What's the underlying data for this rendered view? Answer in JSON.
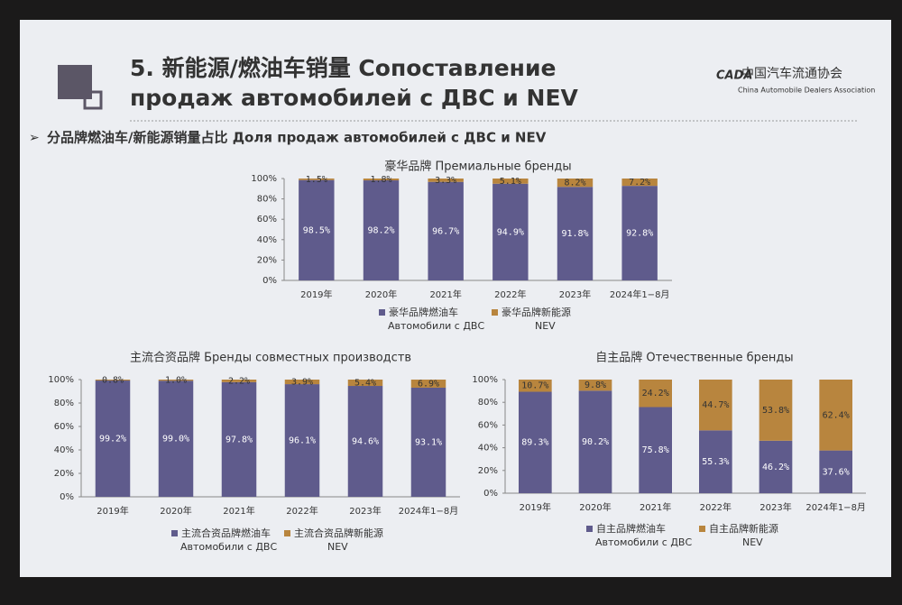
{
  "slide": {
    "title_lines": [
      "5. 新能源/燃油车销量 Сопоставление",
      "продаж автомобилей с ДВС и NEV"
    ],
    "subtitle": "分品牌燃油车/新能源销量占比 Доля продаж автомобилей с ДВС и NEV",
    "logo_mark": "CADA",
    "logo_cn": "中国汽车流通协会",
    "logo_en": "China Automobile Dealers Association"
  },
  "chart_data": [
    {
      "type": "stacked_bar",
      "title": "豪华品牌 Премиальные бренды",
      "categories": [
        "2019年",
        "2020年",
        "2021年",
        "2022年",
        "2023年",
        "2024年1−8月"
      ],
      "series": [
        {
          "name": "豪华品牌燃油车",
          "name_ru": "Автомобили с ДВС",
          "color": "#5f5b8c",
          "values": [
            98.5,
            98.2,
            96.7,
            94.9,
            91.8,
            92.8
          ],
          "value_labels": [
            "98.5%",
            "98.2%",
            "96.7%",
            "94.9%",
            "91.8%",
            "92.8%"
          ]
        },
        {
          "name": "豪华品牌新能源",
          "name_ru": "NEV",
          "color": "#b8853e",
          "values": [
            1.5,
            1.8,
            3.3,
            5.1,
            8.2,
            7.2
          ],
          "value_labels": [
            "1.5%",
            "1.8%",
            "3.3%",
            "5.1%",
            "8.2%",
            "7.2%"
          ]
        }
      ],
      "ylim": [
        0,
        100
      ],
      "yticks": [
        {
          "value": 0,
          "label": "0%"
        },
        {
          "value": 20,
          "label": "20%"
        },
        {
          "value": 40,
          "label": "40%"
        },
        {
          "value": 60,
          "label": "60%"
        },
        {
          "value": 80,
          "label": "80%"
        },
        {
          "value": 100,
          "label": "100%"
        }
      ]
    },
    {
      "type": "stacked_bar",
      "title": "主流合资品牌 Бренды совместных производств",
      "categories": [
        "2019年",
        "2020年",
        "2021年",
        "2022年",
        "2023年",
        "2024年1−8月"
      ],
      "series": [
        {
          "name": "主流合资品牌燃油车",
          "name_ru": "Автомобили с ДВС",
          "color": "#5f5b8c",
          "values": [
            99.2,
            99.0,
            97.8,
            96.1,
            94.6,
            93.1
          ],
          "value_labels": [
            "99.2%",
            "99.0%",
            "97.8%",
            "96.1%",
            "94.6%",
            "93.1%"
          ]
        },
        {
          "name": "主流合资品牌新能源",
          "name_ru": "NEV",
          "color": "#b8853e",
          "values": [
            0.8,
            1.0,
            2.2,
            3.9,
            5.4,
            6.9
          ],
          "value_labels": [
            "0.8%",
            "1.0%",
            "2.2%",
            "3.9%",
            "5.4%",
            "6.9%"
          ]
        }
      ],
      "ylim": [
        0,
        100
      ],
      "yticks": [
        {
          "value": 0,
          "label": "0%"
        },
        {
          "value": 20,
          "label": "20%"
        },
        {
          "value": 40,
          "label": "40%"
        },
        {
          "value": 60,
          "label": "60%"
        },
        {
          "value": 80,
          "label": "80%"
        },
        {
          "value": 100,
          "label": "100%"
        }
      ]
    },
    {
      "type": "stacked_bar",
      "title": "自主品牌 Отечественные бренды",
      "categories": [
        "2019年",
        "2020年",
        "2021年",
        "2022年",
        "2023年",
        "2024年1−8月"
      ],
      "series": [
        {
          "name": "自主品牌燃油车",
          "name_ru": "Автомобили с ДВС",
          "color": "#5f5b8c",
          "values": [
            89.3,
            90.2,
            75.8,
            55.3,
            46.2,
            37.6
          ],
          "value_labels": [
            "89.3%",
            "90.2%",
            "75.8%",
            "55.3%",
            "46.2%",
            "37.6%"
          ]
        },
        {
          "name": "自主品牌新能源",
          "name_ru": "NEV",
          "color": "#b8853e",
          "values": [
            10.7,
            9.8,
            24.2,
            44.7,
            53.8,
            62.4
          ],
          "value_labels": [
            "10.7%",
            "9.8%",
            "24.2%",
            "44.7%",
            "53.8%",
            "62.4%"
          ]
        }
      ],
      "ylim": [
        0,
        100
      ],
      "yticks": [
        {
          "value": 0,
          "label": "0%"
        },
        {
          "value": 20,
          "label": "20%"
        },
        {
          "value": 40,
          "label": "40%"
        },
        {
          "value": 60,
          "label": "60%"
        },
        {
          "value": 80,
          "label": "80%"
        },
        {
          "value": 100,
          "label": "100%"
        }
      ]
    }
  ]
}
